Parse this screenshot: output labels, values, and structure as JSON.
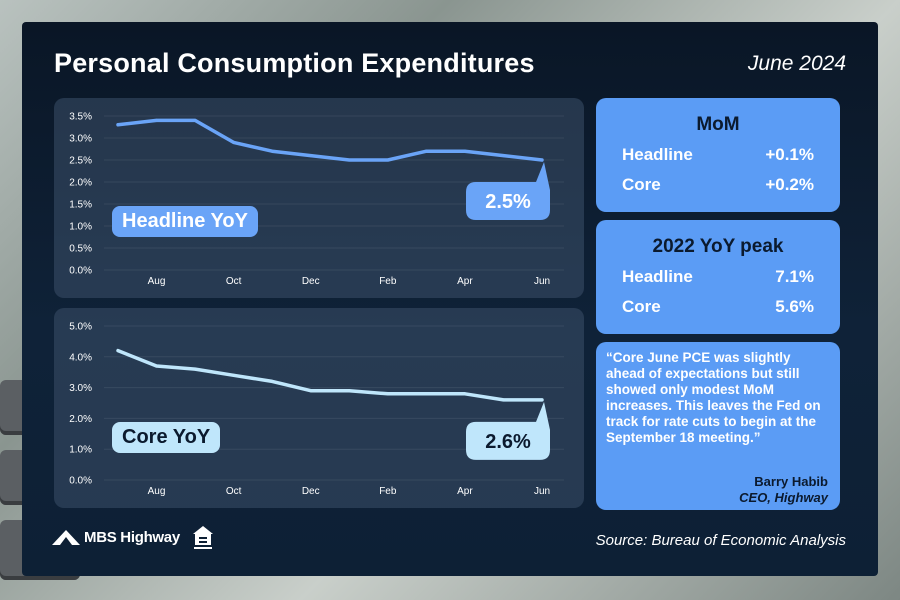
{
  "header": {
    "title": "Personal Consumption Expenditures",
    "date": "June 2024"
  },
  "colors": {
    "headline_line": "#6aa4f7",
    "core_line": "#bfe6fb",
    "accent_box": "#5b9cf5",
    "panel_bg": "#0d1f34"
  },
  "chart_data": [
    {
      "type": "line",
      "label": "Headline YoY",
      "callout": "2.5%",
      "x_tick_labels": [
        "Aug",
        "Oct",
        "Dec",
        "Feb",
        "Apr",
        "Jun"
      ],
      "y_tick_labels": [
        "0.0%",
        "0.5%",
        "1.0%",
        "1.5%",
        "2.0%",
        "2.5%",
        "3.0%",
        "3.5%"
      ],
      "ylim": [
        0,
        3.5
      ],
      "x": [
        "Jul 2023",
        "Aug 2023",
        "Sep 2023",
        "Oct 2023",
        "Nov 2023",
        "Dec 2023",
        "Jan 2024",
        "Feb 2024",
        "Mar 2024",
        "Apr 2024",
        "May 2024",
        "Jun 2024"
      ],
      "values": [
        3.3,
        3.4,
        3.4,
        2.9,
        2.7,
        2.6,
        2.5,
        2.5,
        2.7,
        2.7,
        2.6,
        2.5
      ],
      "grid": true
    },
    {
      "type": "line",
      "label": "Core YoY",
      "callout": "2.6%",
      "x_tick_labels": [
        "Aug",
        "Oct",
        "Dec",
        "Feb",
        "Apr",
        "Jun"
      ],
      "y_tick_labels": [
        "0.0%",
        "1.0%",
        "2.0%",
        "3.0%",
        "4.0%",
        "5.0%"
      ],
      "ylim": [
        0,
        5
      ],
      "x": [
        "Jul 2023",
        "Aug 2023",
        "Sep 2023",
        "Oct 2023",
        "Nov 2023",
        "Dec 2023",
        "Jan 2024",
        "Feb 2024",
        "Mar 2024",
        "Apr 2024",
        "May 2024",
        "Jun 2024"
      ],
      "values": [
        4.2,
        3.7,
        3.6,
        3.4,
        3.2,
        2.9,
        2.9,
        2.8,
        2.8,
        2.8,
        2.6,
        2.6
      ],
      "grid": true
    }
  ],
  "mom": {
    "title": "MoM",
    "rows": [
      {
        "label": "Headline",
        "value": "+0.1%"
      },
      {
        "label": "Core",
        "value": "+0.2%"
      }
    ]
  },
  "peak": {
    "title": "2022 YoY peak",
    "rows": [
      {
        "label": "Headline",
        "value": "7.1%"
      },
      {
        "label": "Core",
        "value": "5.6%"
      }
    ]
  },
  "quote": {
    "text": "“Core June PCE was slightly ahead of expectations but still showed only modest MoM increases. This leaves the Fed on track for rate cuts to begin at the September 18 meeting.”",
    "author": "Barry Habib",
    "author_title": "CEO, Highway"
  },
  "footer": {
    "logo_text": "MBS Highway",
    "logo_icon": "mountain-road-icon",
    "housing_icon": "equal-housing-icon",
    "source": "Source: Bureau of Economic Analysis"
  }
}
